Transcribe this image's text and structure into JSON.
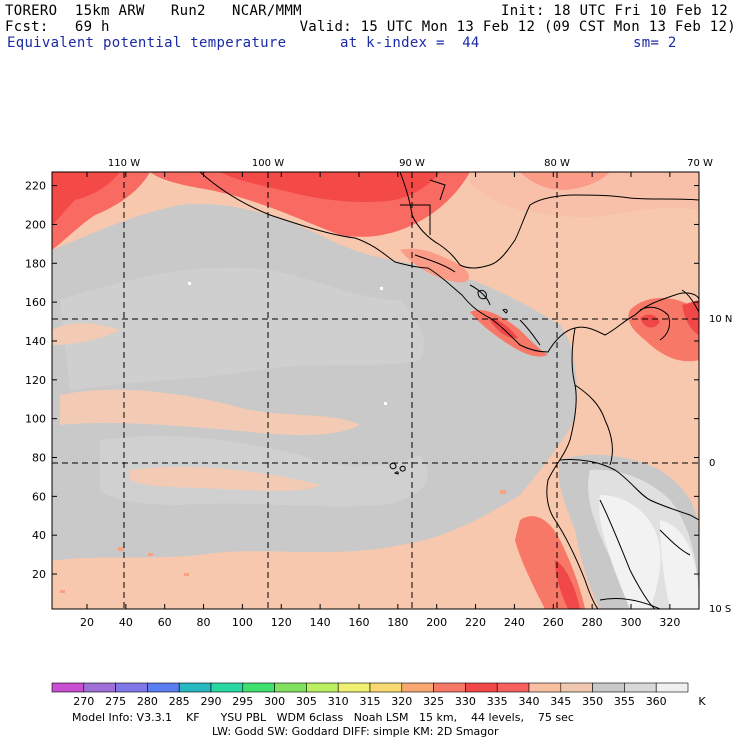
{
  "header": {
    "model": "TORERO",
    "resolution": "15km ARW",
    "run": "Run2",
    "org": "NCAR/MMM",
    "init": "Init: 18 UTC Fri 10 Feb 12",
    "fcst_label": "Fcst:",
    "fcst_value": "69 h",
    "valid": "Valid: 15 UTC Mon 13 Feb 12 (09 CST Mon 13 Feb 12)",
    "field": "Equivalent potential temperature",
    "kindex": "at k-index =  44",
    "sm": "sm= 2"
  },
  "map": {
    "x_ticks": [
      "20",
      "40",
      "60",
      "80",
      "100",
      "120",
      "140",
      "160",
      "180",
      "200",
      "220",
      "240",
      "260",
      "280",
      "300",
      "320"
    ],
    "y_ticks": [
      "20",
      "40",
      "60",
      "80",
      "100",
      "120",
      "140",
      "160",
      "180",
      "200",
      "220"
    ],
    "lon_labels": [
      "110 W",
      "100 W",
      "90 W",
      "80 W",
      "70 W"
    ],
    "lat_labels": [
      "10 N",
      "0",
      "10 S"
    ]
  },
  "colorbar": {
    "values": [
      "270",
      "275",
      "280",
      "285",
      "290",
      "295",
      "300",
      "305",
      "310",
      "315",
      "320",
      "325",
      "330",
      "335",
      "340",
      "345",
      "350",
      "355",
      "360"
    ],
    "unit": "K",
    "colors": [
      "#c84fd0",
      "#a070d8",
      "#8078e8",
      "#5a7ef0",
      "#28b8c0",
      "#28d8a0",
      "#40e070",
      "#80e060",
      "#b8f060",
      "#f0f070",
      "#f8d870",
      "#f8a870",
      "#f87868",
      "#f04848",
      "#f86060",
      "#f8c0a0",
      "#f0c8b0",
      "#c8c8c8",
      "#d8d8d8",
      "#f0f0f0"
    ]
  },
  "footer": {
    "line1": "Model Info: V3.3.1    KF      YSU PBL   WDM 6class   Noah LSM   15 km,    44 levels,    75 sec",
    "line2": "LW: Godd SW: Goddard DIFF: simple KM: 2D Smagor"
  }
}
